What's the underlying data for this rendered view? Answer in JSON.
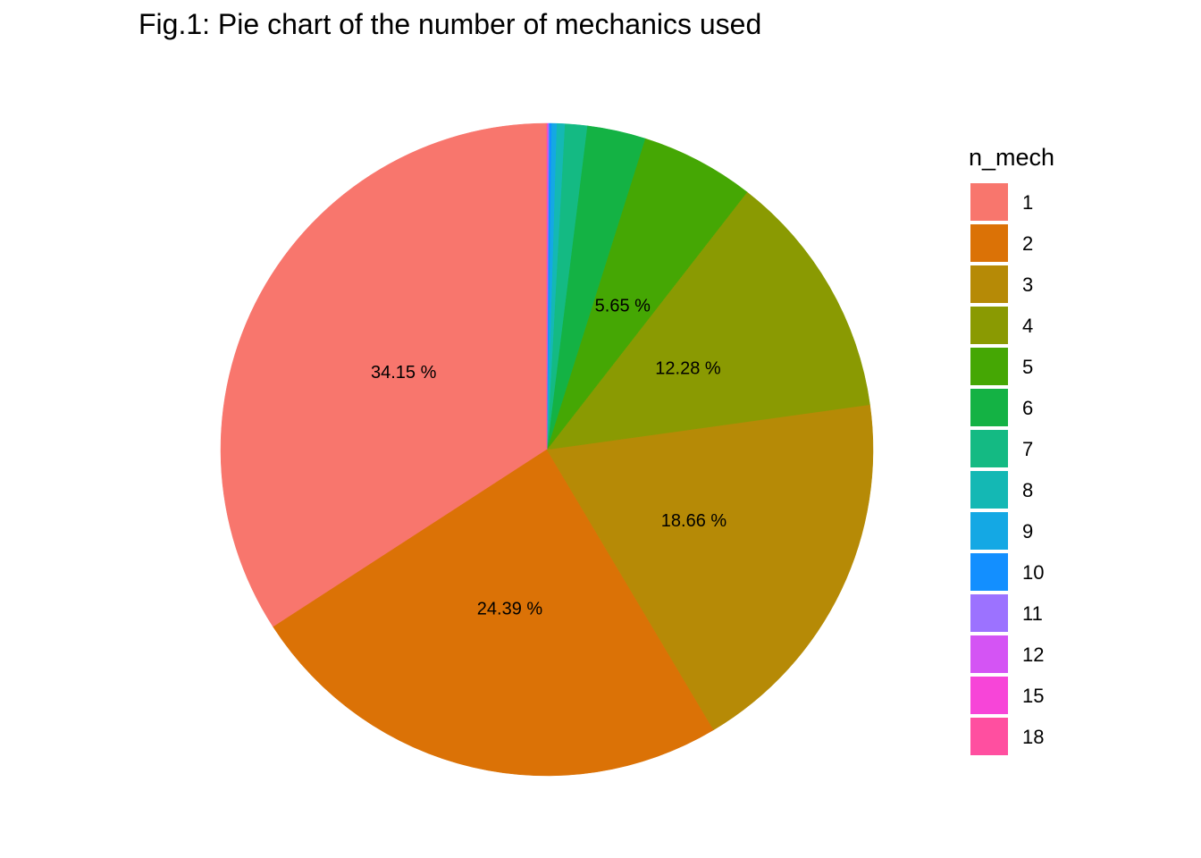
{
  "chart_data": {
    "type": "pie",
    "title": "Fig.1: Pie chart of the number of mechanics used",
    "legend_title": "n_mech",
    "legend_position": "right",
    "start": "top",
    "direction": "counterclockwise",
    "slices": [
      {
        "label": "1",
        "value": 34.15,
        "display": "34.15 %",
        "color": "#F8766D"
      },
      {
        "label": "2",
        "value": 24.39,
        "display": "24.39 %",
        "color": "#DB7206"
      },
      {
        "label": "3",
        "value": 18.66,
        "display": "18.66 %",
        "color": "#B68A06"
      },
      {
        "label": "4",
        "value": 12.28,
        "display": "12.28 %",
        "color": "#8A9A02"
      },
      {
        "label": "5",
        "value": 5.65,
        "display": "5.65 %",
        "color": "#45A704"
      },
      {
        "label": "6",
        "value": 2.9,
        "display": "",
        "color": "#14B244"
      },
      {
        "label": "7",
        "value": 1.1,
        "display": "",
        "color": "#14BA83"
      },
      {
        "label": "8",
        "value": 0.4,
        "display": "",
        "color": "#14B8B4"
      },
      {
        "label": "9",
        "value": 0.25,
        "display": "",
        "color": "#14A8E4"
      },
      {
        "label": "10",
        "value": 0.12,
        "display": "",
        "color": "#138FFF"
      },
      {
        "label": "11",
        "value": 0.05,
        "display": "",
        "color": "#9C72FF"
      },
      {
        "label": "12",
        "value": 0.03,
        "display": "",
        "color": "#D454F4"
      },
      {
        "label": "15",
        "value": 0.01,
        "display": "",
        "color": "#F745D8"
      },
      {
        "label": "18",
        "value": 0.01,
        "display": "",
        "color": "#FF4FA0"
      }
    ]
  }
}
